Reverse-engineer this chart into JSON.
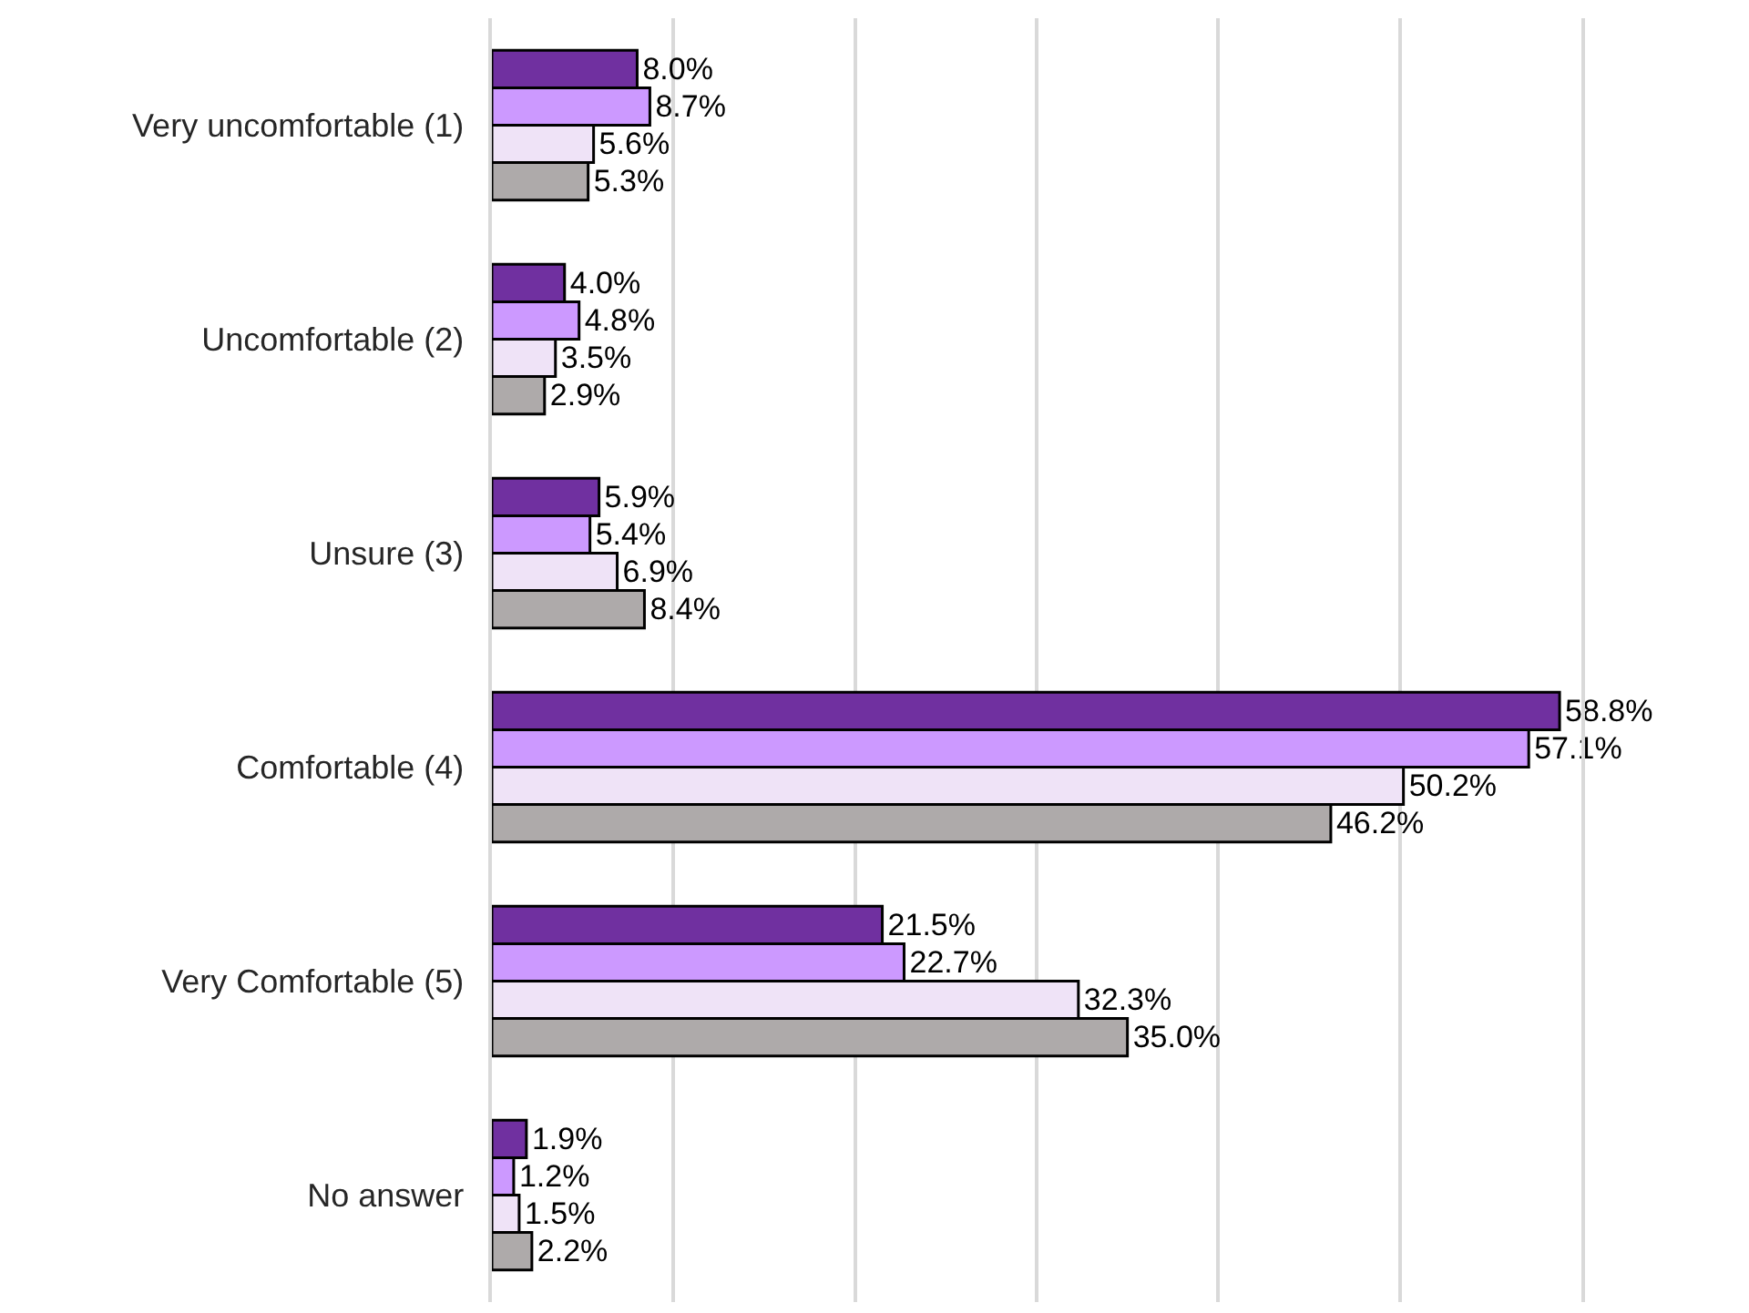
{
  "chart_data": {
    "type": "bar",
    "orientation": "horizontal",
    "categories": [
      "Very uncomfortable (1)",
      "Uncomfortable (2)",
      "Unsure (3)",
      "Comfortable (4)",
      "Very Comfortable (5)",
      "No answer"
    ],
    "series": [
      {
        "color": "#7030a0",
        "values": [
          8.0,
          4.0,
          5.9,
          58.8,
          21.5,
          1.9
        ],
        "value_labels": [
          "8.0%",
          "4.0%",
          "5.9%",
          "58.8%",
          "21.5%",
          "1.9%"
        ]
      },
      {
        "color": "#cc99ff",
        "values": [
          8.7,
          4.8,
          5.4,
          57.1,
          22.7,
          1.2
        ],
        "value_labels": [
          "8.7%",
          "4.8%",
          "5.4%",
          "57.1%",
          "22.7%",
          "1.2%"
        ]
      },
      {
        "color": "#efe3f7",
        "values": [
          5.6,
          3.5,
          6.9,
          50.2,
          32.3,
          1.5
        ],
        "value_labels": [
          "5.6%",
          "3.5%",
          "6.9%",
          "50.2%",
          "32.3%",
          "1.5%"
        ]
      },
      {
        "color": "#aeaaaa",
        "values": [
          5.3,
          2.9,
          8.4,
          46.2,
          35.0,
          2.2
        ],
        "value_labels": [
          "5.3%",
          "2.9%",
          "8.4%",
          "46.2%",
          "35.0%",
          "2.2%"
        ]
      }
    ],
    "xlim": [
      0,
      60
    ],
    "xticks": [
      {
        "value": 0,
        "label": null
      },
      {
        "value": 10,
        "label": null
      },
      {
        "value": 20,
        "label": null
      },
      {
        "value": 30,
        "label": null
      },
      {
        "value": 40,
        "label": null
      },
      {
        "value": 50,
        "label": null
      },
      {
        "value": 60,
        "label": null
      }
    ],
    "grid": "x",
    "tick_labels": "y"
  }
}
